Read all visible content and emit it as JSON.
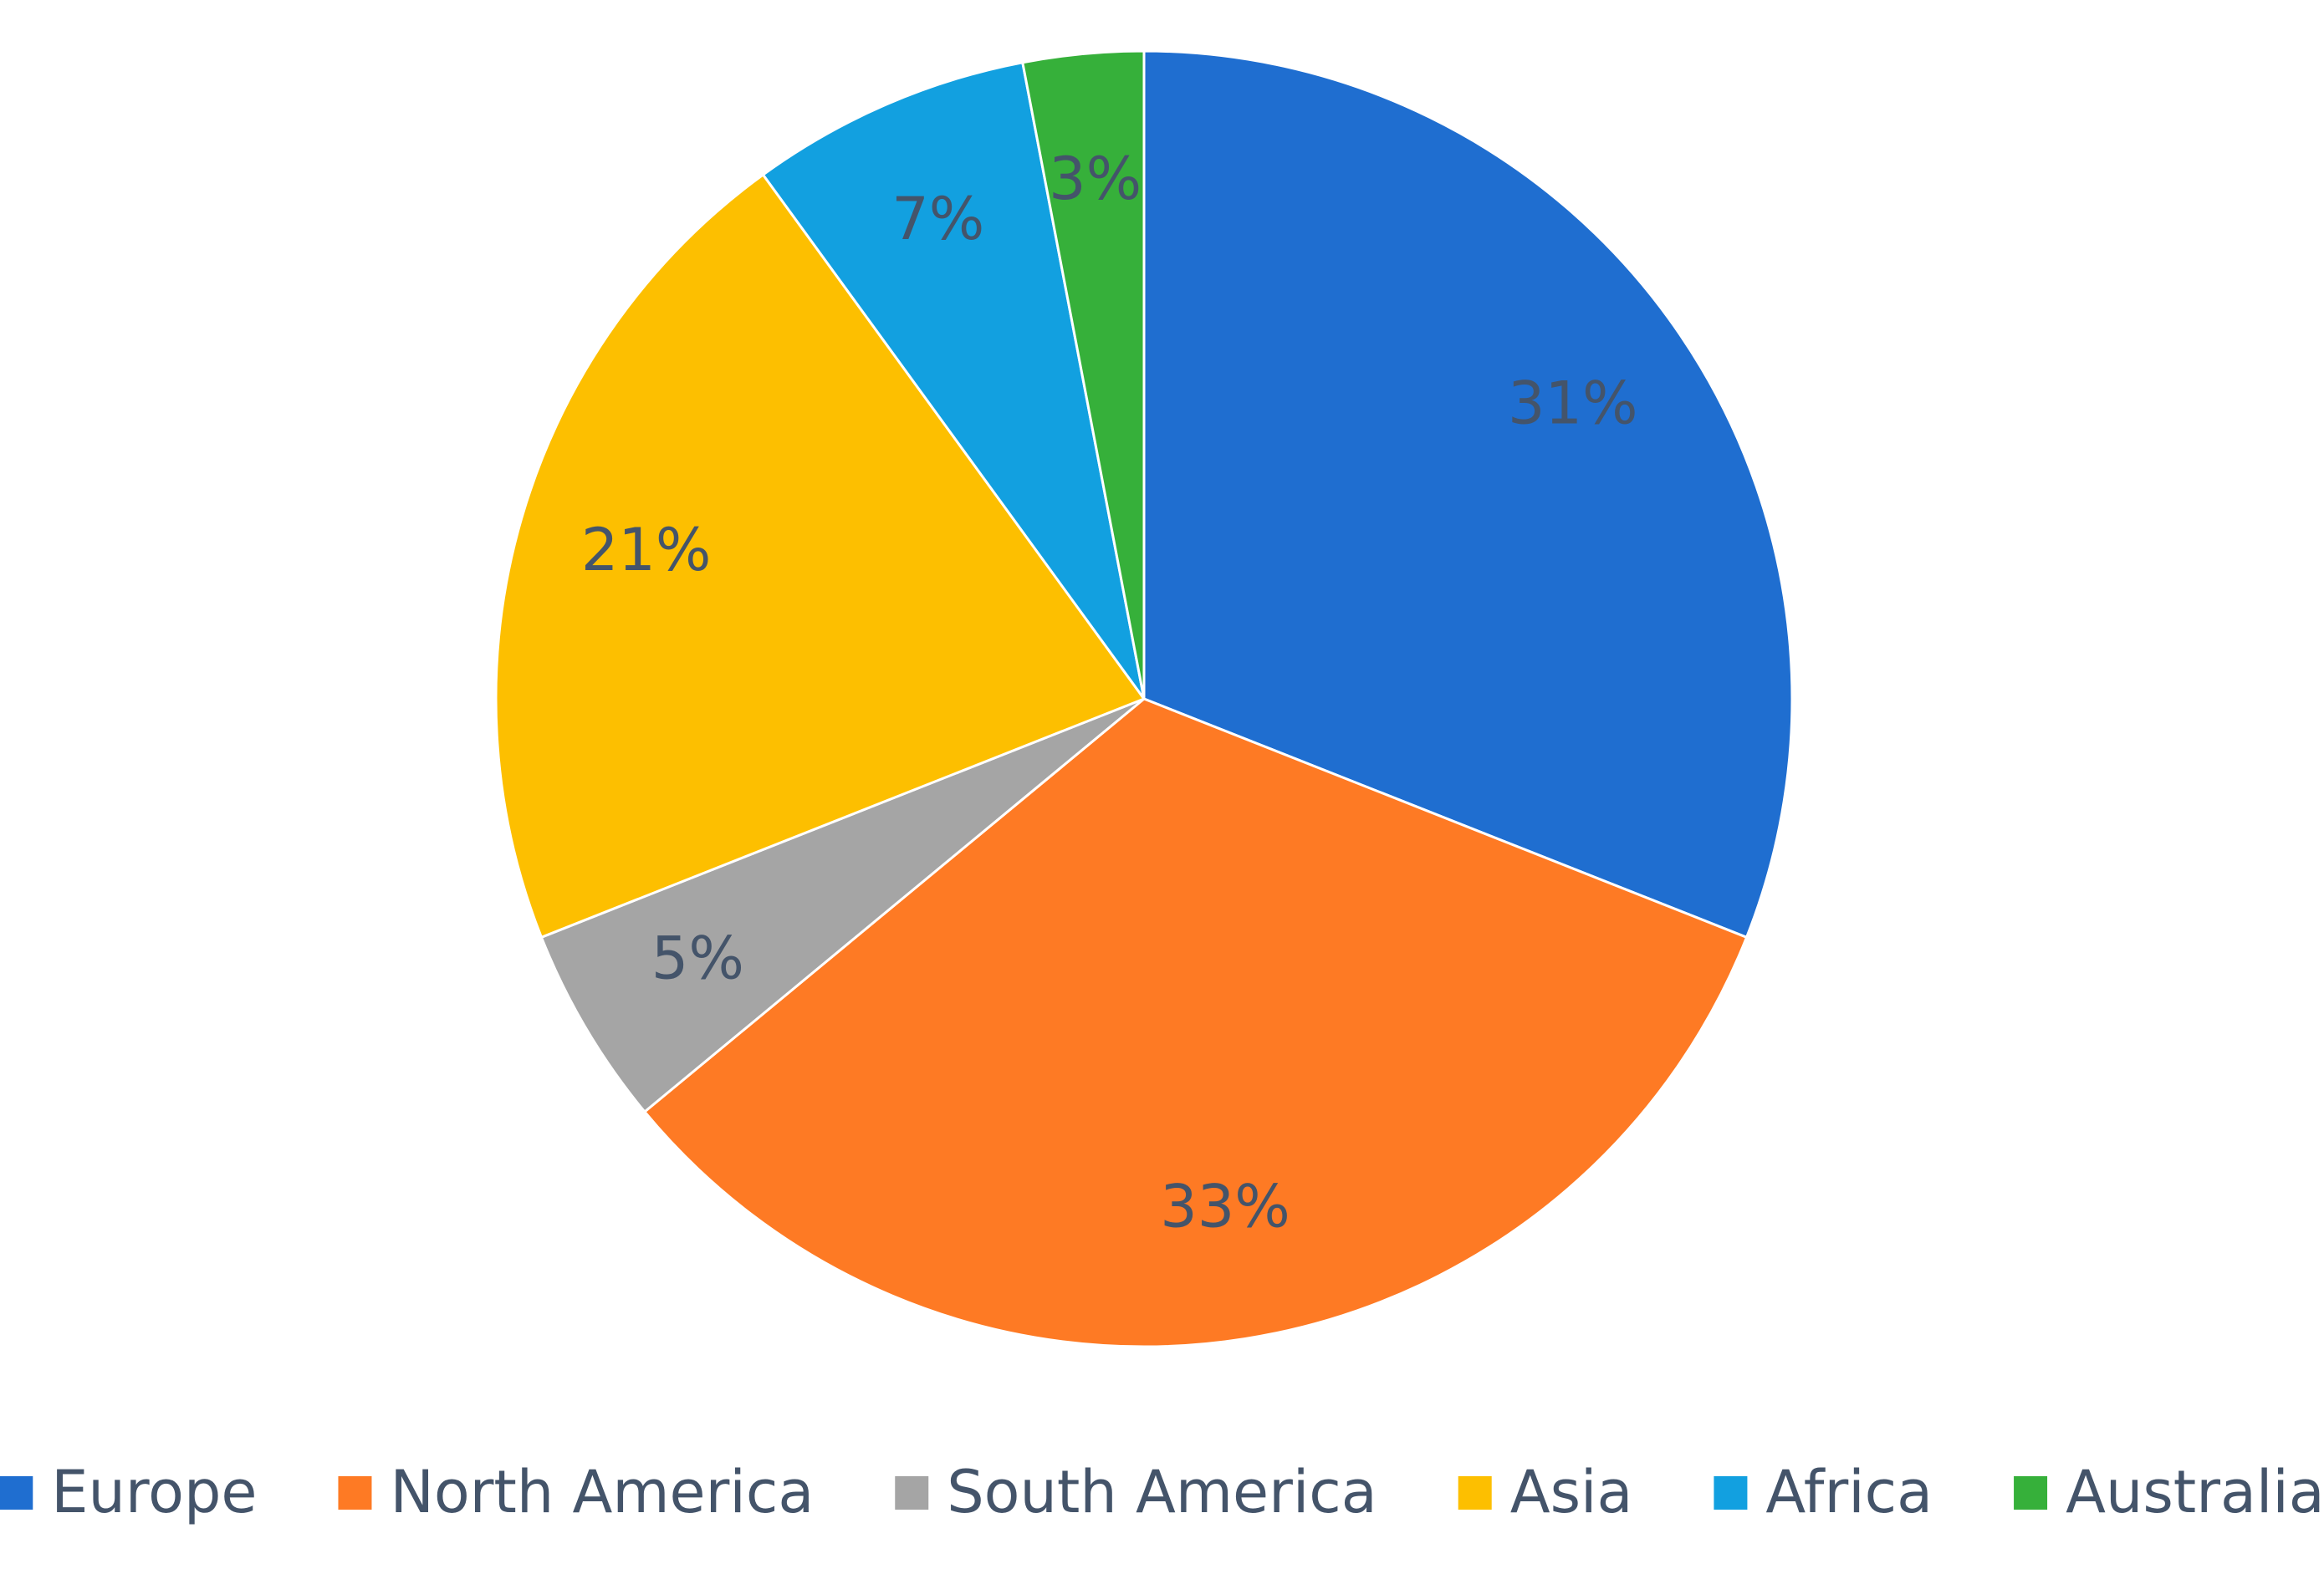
{
  "chart_data": {
    "type": "pie",
    "categories": [
      "Europe",
      "North America",
      "South America",
      "Asia",
      "Africa",
      "Australia"
    ],
    "values": [
      31,
      33,
      5,
      21,
      7,
      3
    ],
    "value_labels": [
      "31%",
      "33%",
      "5%",
      "21%",
      "7%",
      "3%"
    ],
    "colors": [
      "#1f6ed0",
      "#fe7a24",
      "#a5a5a5",
      "#fdbf00",
      "#12a0e0",
      "#36b03a"
    ],
    "legend": "bottom"
  }
}
